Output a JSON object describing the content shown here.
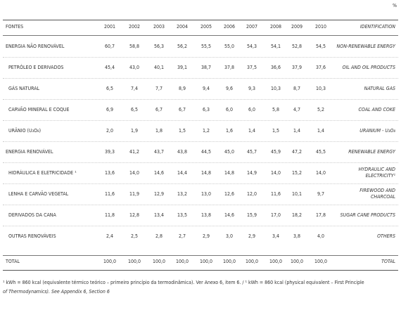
{
  "unit": "%",
  "table": {
    "header": [
      "FONTES",
      "2001",
      "2002",
      "2003",
      "2004",
      "2005",
      "2006",
      "2007",
      "2008",
      "2009",
      "2010",
      "IDENTIFICATION"
    ],
    "rows": [
      {
        "label": "ENERGIA NÃO RENOVÁVEL",
        "values": [
          "60,7",
          "58,8",
          "56,3",
          "56,2",
          "55,5",
          "55,0",
          "54,3",
          "54,1",
          "52,8",
          "54,5"
        ],
        "en": "NON-RENEWABLE ENERGY"
      },
      {
        "label": "PETRÓLEO E DERIVADOS",
        "values": [
          "45,4",
          "43,0",
          "40,1",
          "39,1",
          "38,7",
          "37,8",
          "37,5",
          "36,6",
          "37,9",
          "37,6"
        ],
        "en": "OIL AND OIL PRODUCTS"
      },
      {
        "label": "GÁS NATURAL",
        "values": [
          "6,5",
          "7,4",
          "7,7",
          "8,9",
          "9,4",
          "9,6",
          "9,3",
          "10,3",
          "8,7",
          "10,3"
        ],
        "en": "NATURAL GAS"
      },
      {
        "label": "CARVÃO MINERAL E COQUE",
        "values": [
          "6,9",
          "6,5",
          "6,7",
          "6,7",
          "6,3",
          "6,0",
          "6,0",
          "5,8",
          "4,7",
          "5,2"
        ],
        "en": "COAL AND COKE"
      },
      {
        "label": "URÂNIO (U₃O₈)",
        "values": [
          "2,0",
          "1,9",
          "1,8",
          "1,5",
          "1,2",
          "1,6",
          "1,4",
          "1,5",
          "1,4",
          "1,4"
        ],
        "en": "URANIUM - U₃O₈"
      },
      {
        "label": "ENERGIA RENOVÁVEL",
        "values": [
          "39,3",
          "41,2",
          "43,7",
          "43,8",
          "44,5",
          "45,0",
          "45,7",
          "45,9",
          "47,2",
          "45,5"
        ],
        "en": "RENEWABLE ENERGY"
      },
      {
        "label": "HIDRÁULICA E ELETRICIDADE ¹",
        "values": [
          "13,6",
          "14,0",
          "14,6",
          "14,4",
          "14,8",
          "14,8",
          "14,9",
          "14,0",
          "15,2",
          "14,0"
        ],
        "en": "HYDRAULIC AND ELECTRICITY¹"
      },
      {
        "label": "LENHA E CARVÃO VEGETAL",
        "values": [
          "11,6",
          "11,9",
          "12,9",
          "13,2",
          "13,0",
          "12,6",
          "12,0",
          "11,6",
          "10,1",
          "9,7"
        ],
        "en": "FIREWOOD AND CHARCOAL"
      },
      {
        "label": "DERIVADOS DA CANA",
        "values": [
          "11,8",
          "12,8",
          "13,4",
          "13,5",
          "13,8",
          "14,6",
          "15,9",
          "17,0",
          "18,2",
          "17,8"
        ],
        "en": "SUGAR CANE PRODUCTS"
      },
      {
        "label": "OUTRAS RENOVÁVEIS",
        "values": [
          "2,4",
          "2,5",
          "2,8",
          "2,7",
          "2,9",
          "3,0",
          "2,9",
          "3,4",
          "3,8",
          "4,0"
        ],
        "en": "OTHERS"
      },
      {
        "label": "TOTAL",
        "values": [
          "100,0",
          "100,0",
          "100,0",
          "100,0",
          "100,0",
          "100,0",
          "100,0",
          "100,0",
          "100,0",
          "100,0"
        ],
        "en": "TOTAL"
      }
    ]
  },
  "footnote": [
    "¹ kWh = 860 kcal (equivalente térmico teórico – primeiro princípio da termodinâmica). Ver Anexo 6, item  6. / ¹ kWh = 860 kcal (physical equivalent – First Principle",
    "of Thermodynamics). See Appendix 6, Section 6"
  ]
}
